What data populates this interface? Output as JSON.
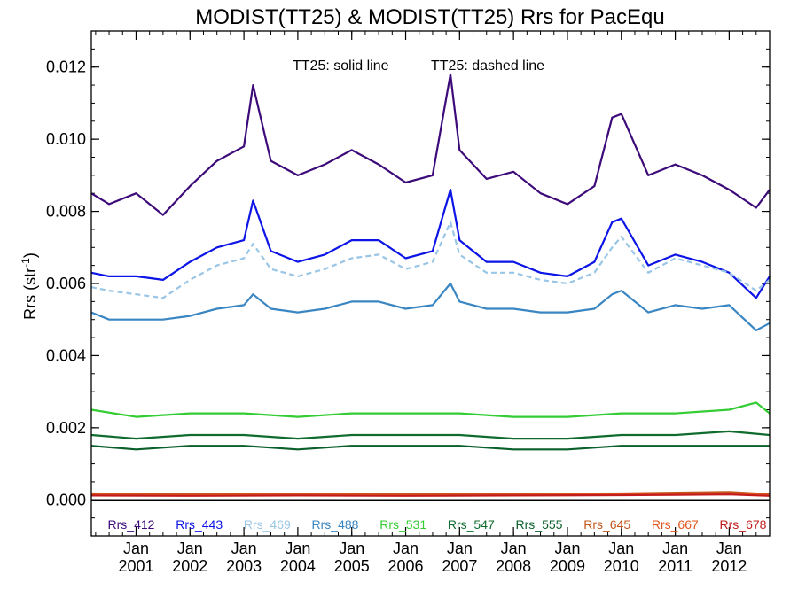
{
  "chart_data": {
    "type": "line",
    "title": "MODIST(TT25) & MODIST(TT25)  Rrs for PacEqu",
    "ylabel": "Rrs (str",
    "ylabel_exponent": "-1",
    "ylabel_close": ")",
    "annotations": [
      "TT25: solid line",
      "TT25: dashed line"
    ],
    "xlim": [
      2000.17,
      2012.75
    ],
    "ylim": [
      -0.001,
      0.013
    ],
    "yticks": [
      0.0,
      0.002,
      0.004,
      0.006,
      0.008,
      0.01,
      0.012
    ],
    "ytick_labels": [
      "0.000",
      "0.002",
      "0.004",
      "0.006",
      "0.008",
      "0.010",
      "0.012"
    ],
    "xticks": [
      {
        "month": "Jan",
        "year": "2001",
        "pos": 2001.0
      },
      {
        "month": "Jan",
        "year": "2002",
        "pos": 2002.0
      },
      {
        "month": "Jan",
        "year": "2003",
        "pos": 2003.0
      },
      {
        "month": "Jan",
        "year": "2004",
        "pos": 2004.0
      },
      {
        "month": "Jan",
        "year": "2005",
        "pos": 2005.0
      },
      {
        "month": "Jan",
        "year": "2006",
        "pos": 2006.0
      },
      {
        "month": "Jan",
        "year": "2007",
        "pos": 2007.0
      },
      {
        "month": "Jan",
        "year": "2008",
        "pos": 2008.0
      },
      {
        "month": "Jan",
        "year": "2009",
        "pos": 2009.0
      },
      {
        "month": "Jan",
        "year": "2010",
        "pos": 2010.0
      },
      {
        "month": "Jan",
        "year": "2011",
        "pos": 2011.0
      },
      {
        "month": "Jan",
        "year": "2012",
        "pos": 2012.0
      }
    ],
    "legend_placement": "bottom inside plot",
    "series": [
      {
        "name": "Rrs_412",
        "color": "#3d0a7a",
        "style": "solid",
        "x": [
          2000.17,
          2000.5,
          2001.0,
          2001.5,
          2002.0,
          2002.5,
          2003.0,
          2003.17,
          2003.5,
          2004.0,
          2004.5,
          2005.0,
          2005.5,
          2006.0,
          2006.5,
          2006.83,
          2007.0,
          2007.5,
          2008.0,
          2008.5,
          2009.0,
          2009.5,
          2009.83,
          2010.0,
          2010.5,
          2011.0,
          2011.5,
          2012.0,
          2012.5,
          2012.75
        ],
        "values": [
          0.0085,
          0.0082,
          0.0085,
          0.0079,
          0.0087,
          0.0094,
          0.0098,
          0.0115,
          0.0094,
          0.009,
          0.0093,
          0.0097,
          0.0093,
          0.0088,
          0.009,
          0.0118,
          0.0097,
          0.0089,
          0.0091,
          0.0085,
          0.0082,
          0.0087,
          0.0106,
          0.0107,
          0.009,
          0.0093,
          0.009,
          0.0086,
          0.0081,
          0.0086
        ]
      },
      {
        "name": "Rrs_443",
        "color": "#0c14e6",
        "style": "solid",
        "x": [
          2000.17,
          2000.5,
          2001.0,
          2001.5,
          2002.0,
          2002.5,
          2003.0,
          2003.17,
          2003.5,
          2004.0,
          2004.5,
          2005.0,
          2005.5,
          2006.0,
          2006.5,
          2006.83,
          2007.0,
          2007.5,
          2008.0,
          2008.5,
          2009.0,
          2009.5,
          2009.83,
          2010.0,
          2010.5,
          2011.0,
          2011.5,
          2012.0,
          2012.5,
          2012.75
        ],
        "values": [
          0.0063,
          0.0062,
          0.0062,
          0.0061,
          0.0066,
          0.007,
          0.0072,
          0.0083,
          0.0069,
          0.0066,
          0.0068,
          0.0072,
          0.0072,
          0.0067,
          0.0069,
          0.0086,
          0.0072,
          0.0066,
          0.0066,
          0.0063,
          0.0062,
          0.0066,
          0.0077,
          0.0078,
          0.0065,
          0.0068,
          0.0066,
          0.0063,
          0.0056,
          0.0062
        ]
      },
      {
        "name": "Rrs_469",
        "color": "#99c6e6",
        "style": "dashed",
        "x": [
          2000.17,
          2000.5,
          2001.0,
          2001.5,
          2002.0,
          2002.5,
          2003.0,
          2003.17,
          2003.5,
          2004.0,
          2004.5,
          2005.0,
          2005.5,
          2006.0,
          2006.5,
          2006.83,
          2007.0,
          2007.5,
          2008.0,
          2008.5,
          2009.0,
          2009.5,
          2009.83,
          2010.0,
          2010.5,
          2011.0,
          2011.5,
          2012.0,
          2012.5,
          2012.75
        ],
        "values": [
          0.0059,
          0.0058,
          0.0057,
          0.0056,
          0.0061,
          0.0065,
          0.0067,
          0.0071,
          0.0064,
          0.0062,
          0.0064,
          0.0067,
          0.0068,
          0.0064,
          0.0066,
          0.0077,
          0.0068,
          0.0063,
          0.0063,
          0.0061,
          0.006,
          0.0063,
          0.007,
          0.0073,
          0.0063,
          0.0067,
          0.0065,
          0.0063,
          0.0058,
          0.0061
        ]
      },
      {
        "name": "Rrs_488",
        "color": "#3a86c2",
        "style": "solid",
        "x": [
          2000.17,
          2000.5,
          2001.0,
          2001.5,
          2002.0,
          2002.5,
          2003.0,
          2003.17,
          2003.5,
          2004.0,
          2004.5,
          2005.0,
          2005.5,
          2006.0,
          2006.5,
          2006.83,
          2007.0,
          2007.5,
          2008.0,
          2008.5,
          2009.0,
          2009.5,
          2009.83,
          2010.0,
          2010.5,
          2011.0,
          2011.5,
          2012.0,
          2012.5,
          2012.75
        ],
        "values": [
          0.0052,
          0.005,
          0.005,
          0.005,
          0.0051,
          0.0053,
          0.0054,
          0.0057,
          0.0053,
          0.0052,
          0.0053,
          0.0055,
          0.0055,
          0.0053,
          0.0054,
          0.006,
          0.0055,
          0.0053,
          0.0053,
          0.0052,
          0.0052,
          0.0053,
          0.0057,
          0.0058,
          0.0052,
          0.0054,
          0.0053,
          0.0054,
          0.0047,
          0.0049
        ]
      },
      {
        "name": "Rrs_531",
        "color": "#33cc33",
        "style": "solid",
        "x": [
          2000.17,
          2001.0,
          2002.0,
          2003.0,
          2004.0,
          2005.0,
          2006.0,
          2007.0,
          2008.0,
          2009.0,
          2010.0,
          2011.0,
          2012.0,
          2012.5,
          2012.75
        ],
        "values": [
          0.0025,
          0.0023,
          0.0024,
          0.0024,
          0.0023,
          0.0024,
          0.0024,
          0.0024,
          0.0023,
          0.0023,
          0.0024,
          0.0024,
          0.0025,
          0.0027,
          0.0024
        ]
      },
      {
        "name": "Rrs_547",
        "color": "#0f6b2e",
        "style": "solid",
        "x": [
          2000.17,
          2001.0,
          2002.0,
          2003.0,
          2004.0,
          2005.0,
          2006.0,
          2007.0,
          2008.0,
          2009.0,
          2010.0,
          2011.0,
          2012.0,
          2012.75
        ],
        "values": [
          0.0018,
          0.0017,
          0.0018,
          0.0018,
          0.0017,
          0.0018,
          0.0018,
          0.0018,
          0.0017,
          0.0017,
          0.0018,
          0.0018,
          0.0019,
          0.0018
        ]
      },
      {
        "name": "Rrs_555",
        "color": "#0a5f2a",
        "style": "solid",
        "x": [
          2000.17,
          2001.0,
          2002.0,
          2003.0,
          2004.0,
          2005.0,
          2006.0,
          2007.0,
          2008.0,
          2009.0,
          2010.0,
          2011.0,
          2012.0,
          2012.75
        ],
        "values": [
          0.0015,
          0.0014,
          0.0015,
          0.0015,
          0.0014,
          0.0015,
          0.0015,
          0.0015,
          0.0014,
          0.0014,
          0.0015,
          0.0015,
          0.0015,
          0.0015
        ]
      },
      {
        "name": "Rrs_645",
        "color": "#c2571e",
        "style": "solid",
        "x": [
          2000.17,
          2002.0,
          2004.0,
          2006.0,
          2008.0,
          2010.0,
          2012.0,
          2012.75
        ],
        "values": [
          0.00018,
          0.00016,
          0.00017,
          0.00016,
          0.00017,
          0.00018,
          0.00022,
          0.00016
        ]
      },
      {
        "name": "Rrs_667",
        "color": "#e2541a",
        "style": "solid",
        "x": [
          2000.17,
          2002.0,
          2004.0,
          2006.0,
          2008.0,
          2010.0,
          2012.0,
          2012.75
        ],
        "values": [
          0.00014,
          0.00013,
          0.00014,
          0.00013,
          0.00014,
          0.00015,
          0.00018,
          0.00013
        ]
      },
      {
        "name": "Rrs_678",
        "color": "#c21c1c",
        "style": "solid",
        "x": [
          2000.17,
          2002.0,
          2004.0,
          2006.0,
          2008.0,
          2010.0,
          2012.0,
          2012.75
        ],
        "values": [
          0.00012,
          0.00011,
          0.00012,
          0.00011,
          0.00012,
          0.00013,
          0.00015,
          0.00011
        ]
      }
    ]
  }
}
